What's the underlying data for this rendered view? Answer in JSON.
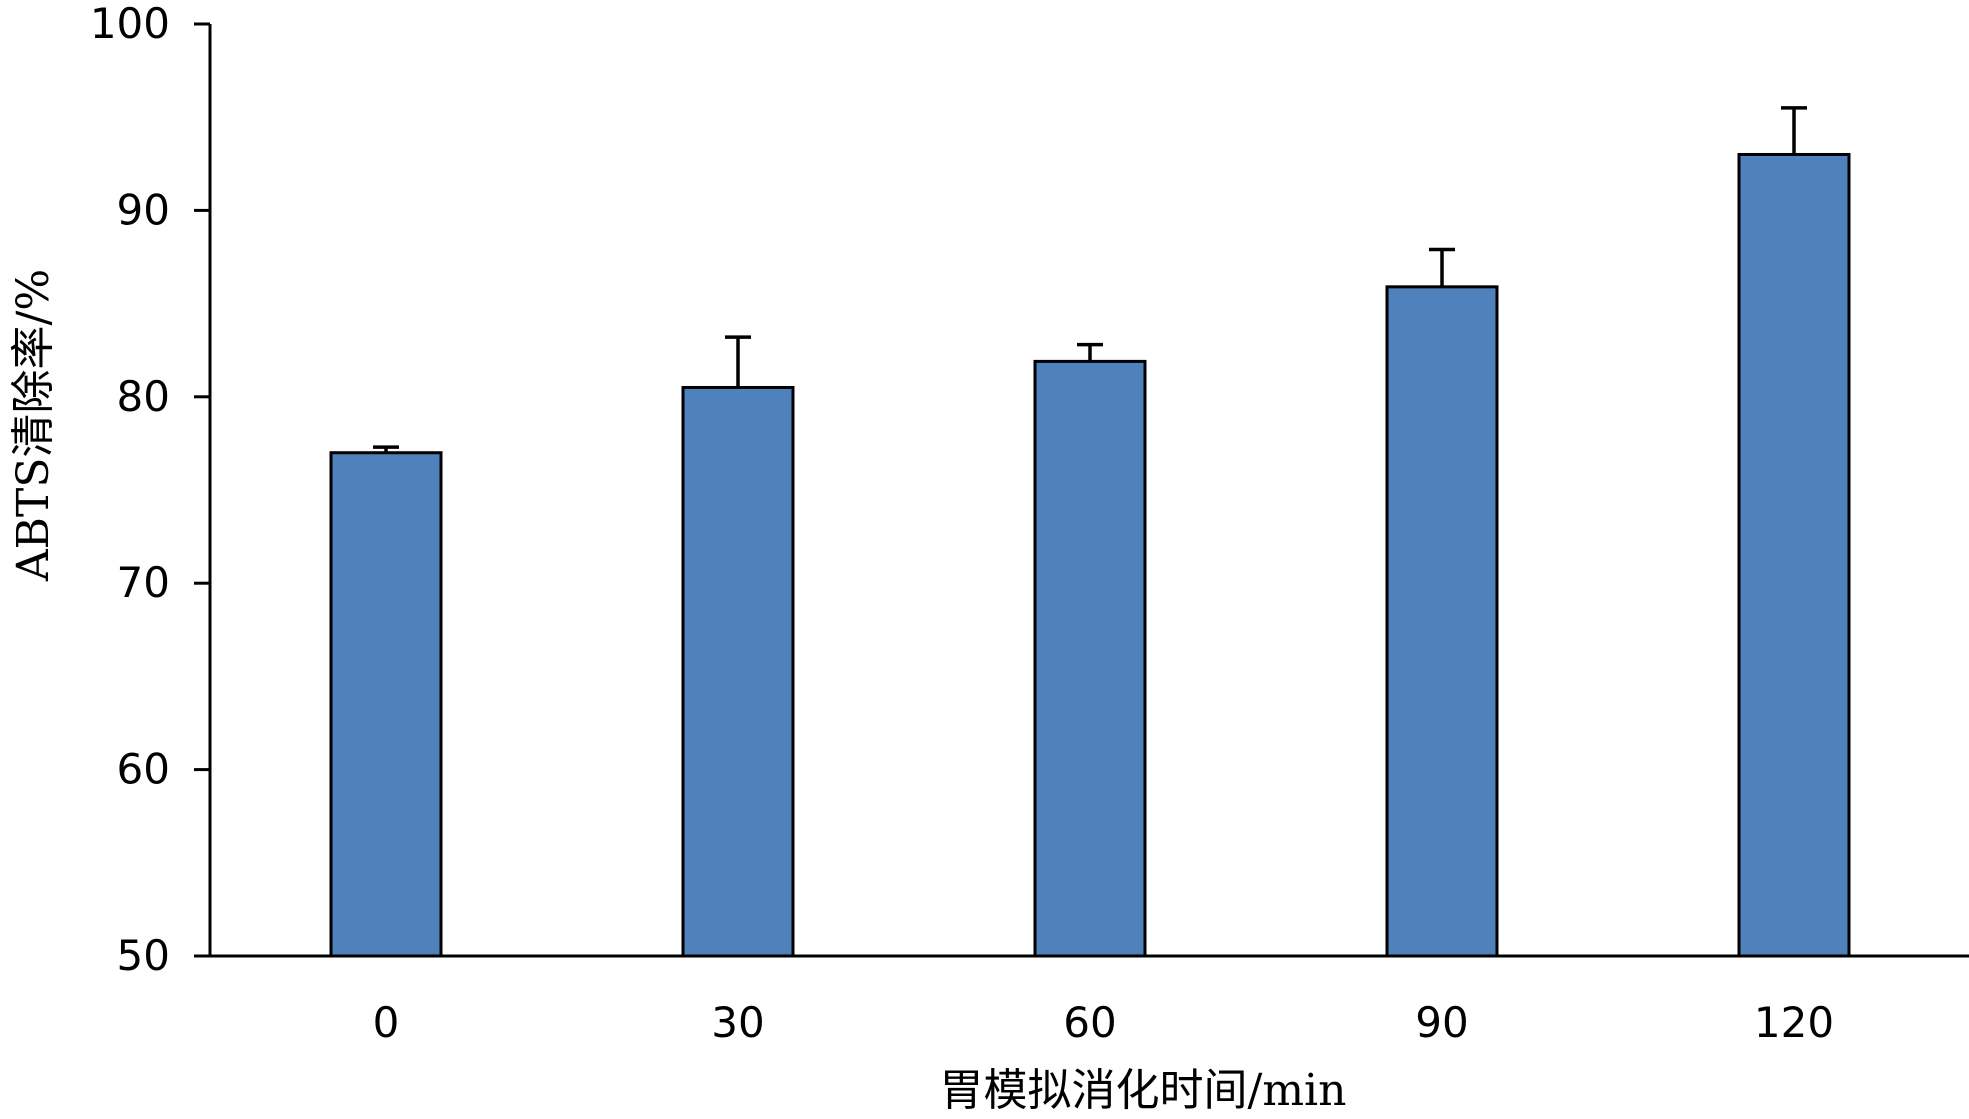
{
  "chart_data": {
    "type": "bar",
    "title": "",
    "xlabel": "胃模拟消化时间/min",
    "ylabel": "ABTS清除率/%",
    "categories": [
      "0",
      "30",
      "60",
      "90",
      "120"
    ],
    "values": [
      77.0,
      80.5,
      81.9,
      85.9,
      93.0
    ],
    "error": [
      0.3,
      2.7,
      0.9,
      2.0,
      2.5
    ],
    "ylim": [
      50,
      100
    ],
    "yticks": [
      50,
      60,
      70,
      80,
      90,
      100
    ],
    "ytick_labels": [
      "50",
      "60",
      "70",
      "80",
      "90",
      "100"
    ],
    "grid": false,
    "legend": "none",
    "bar_color": "#4f81bd",
    "edge_color": "#000000"
  }
}
